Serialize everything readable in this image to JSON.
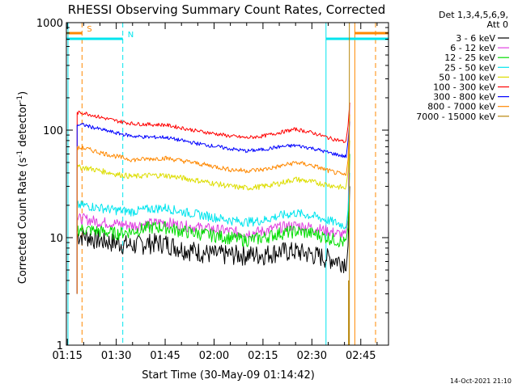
{
  "chart_data": {
    "type": "line",
    "title": "RHESSI Observing Summary Count Rates, Corrected",
    "xlabel": "Start Time (30-May-09 01:14:42)",
    "ylabel": "Corrected Count Rate (s⁻¹ detector⁻¹)",
    "yscale": "log",
    "ylim": [
      1,
      1000
    ],
    "xlim": [
      "01:14:42",
      "02:53:30"
    ],
    "x_ticks": [
      "01:15",
      "01:30",
      "01:45",
      "02:00",
      "02:15",
      "02:30",
      "02:45"
    ],
    "y_ticks": [
      "1",
      "10",
      "100",
      "1000"
    ],
    "legend_header": [
      "Det 1,3,4,5,6,9,",
      "Att 0"
    ],
    "legend_position": "right",
    "x_times": [
      "01:20",
      "01:25",
      "01:30",
      "01:35",
      "01:40",
      "01:45",
      "01:50",
      "01:55",
      "02:00",
      "02:05",
      "02:10",
      "02:15",
      "02:20",
      "02:25",
      "02:30",
      "02:35",
      "02:40"
    ],
    "series": [
      {
        "name": "3 - 6 keV",
        "color": "#000000",
        "values": [
          10.5,
          9.5,
          9,
          8.5,
          9,
          9,
          8,
          7.5,
          7,
          7,
          7,
          7,
          7.5,
          7.5,
          7,
          6.5,
          6
        ]
      },
      {
        "name": "6 - 12 keV",
        "color": "#e040e0",
        "values": [
          15,
          14,
          13.5,
          13,
          13.5,
          14,
          13,
          12.5,
          12,
          11.5,
          11,
          11.5,
          12.5,
          13,
          12.5,
          11.5,
          10.5
        ]
      },
      {
        "name": "12 - 25 keV",
        "color": "#00dd00",
        "values": [
          12,
          11.5,
          11,
          11.5,
          12.5,
          12.5,
          11.5,
          11,
          10.5,
          10,
          9.5,
          10,
          11,
          11.5,
          11,
          10,
          9
        ]
      },
      {
        "name": "25 - 50 keV",
        "color": "#00e5ee",
        "values": [
          20,
          19,
          18,
          17.5,
          18.5,
          19,
          17.5,
          16.5,
          15.5,
          14.5,
          14,
          14.5,
          16,
          17,
          16,
          14.5,
          13
        ]
      },
      {
        "name": "50 - 100 keV",
        "color": "#dddd00",
        "values": [
          45,
          42,
          39,
          37,
          38,
          38,
          36,
          34,
          32,
          30,
          29,
          30,
          32,
          35,
          33,
          31,
          29
        ]
      },
      {
        "name": "100 - 300 keV",
        "color": "#ff0000",
        "values": [
          145,
          132,
          122,
          115,
          113,
          112,
          105,
          98,
          93,
          88,
          85,
          88,
          95,
          102,
          95,
          85,
          78
        ]
      },
      {
        "name": "300 - 800 keV",
        "color": "#0000ff",
        "values": [
          112,
          102,
          94,
          88,
          86,
          86,
          80,
          75,
          71,
          67,
          64,
          66,
          70,
          72,
          68,
          62,
          57
        ]
      },
      {
        "name": "800 - 7000 keV",
        "color": "#ff8800",
        "values": [
          68,
          62,
          57,
          53,
          54,
          55,
          52,
          49,
          46,
          43,
          42,
          43,
          46,
          50,
          47,
          42,
          38
        ]
      },
      {
        "name": "7000 - 15000 keV",
        "color": "#b8860b",
        "values": []
      }
    ],
    "flag_bars": [
      {
        "label": "S",
        "color": "#ff8800",
        "intervals": [
          [
            "01:14:42",
            "01:19:30"
          ],
          [
            "02:43:10",
            "02:53:30"
          ]
        ]
      },
      {
        "label": "N",
        "color": "#00e5ee",
        "intervals": [
          [
            "01:14:42",
            "01:32:00"
          ],
          [
            "02:34:20",
            "02:53:30"
          ]
        ]
      }
    ]
  },
  "footer": {
    "timestamp": "14-Oct-2021 21:10"
  }
}
